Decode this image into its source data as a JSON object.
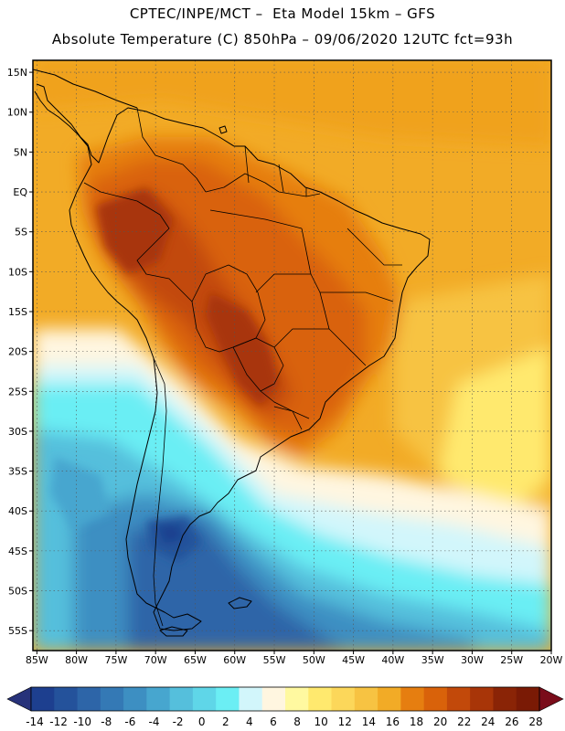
{
  "header": {
    "line1": "CPTEC/INPE/MCT –  Eta Model 15km – GFS",
    "line2": "Absolute Temperature (C) 850hPa – 09/06/2020 12UTC fct=93h"
  },
  "map": {
    "lat_labels": [
      "15N",
      "10N",
      "5N",
      "EQ",
      "5S",
      "10S",
      "15S",
      "20S",
      "25S",
      "30S",
      "35S",
      "40S",
      "45S",
      "50S",
      "55S"
    ],
    "lon_labels": [
      "85W",
      "80W",
      "75W",
      "70W",
      "65W",
      "60W",
      "55W",
      "50W",
      "45W",
      "40W",
      "35W",
      "30W",
      "25W",
      "20W"
    ],
    "lat_range": [
      -57.5,
      16.5
    ],
    "lon_range": [
      -85.5,
      -20
    ]
  },
  "colorbar": {
    "labels": [
      "-14",
      "-12",
      "-10",
      "-8",
      "-6",
      "-4",
      "-2",
      "0",
      "2",
      "4",
      "6",
      "8",
      "10",
      "12",
      "14",
      "16",
      "18",
      "20",
      "22",
      "24",
      "26",
      "28"
    ],
    "colors": [
      "#1d3f8f",
      "#24529b",
      "#2d65a8",
      "#3479b5",
      "#3d8fc2",
      "#47a6cf",
      "#55bfdc",
      "#5fd6e8",
      "#6beef4",
      "#d2f6fb",
      "#fff6e0",
      "#fff9a0",
      "#ffe96e",
      "#fcd75a",
      "#f7c342",
      "#f2ab26",
      "#e67e10",
      "#d9620a",
      "#c2490a",
      "#a83508",
      "#8a2406",
      "#7a1a05"
    ],
    "under_color": "#27327a",
    "over_color": "#7a0c1a"
  }
}
